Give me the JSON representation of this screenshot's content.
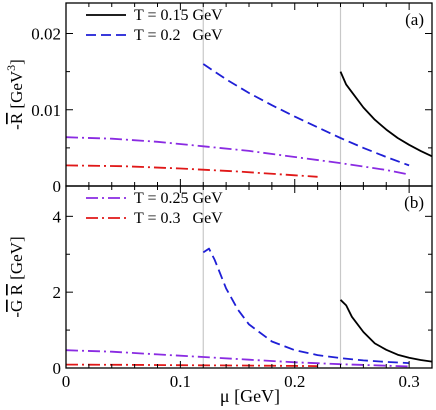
{
  "chart_data": [
    {
      "type": "line",
      "panel_label": "(a)",
      "ylabel_prefix": "-",
      "ylabel_bar": "R",
      "ylabel_unit": " [GeV",
      "ylabel_exp": "3",
      "ylabel_close": "]",
      "xlim": [
        0,
        0.32
      ],
      "ylim": [
        0,
        0.024
      ],
      "yticks": [
        0,
        0.01,
        0.02
      ],
      "ytick_labels": [
        "0",
        "0.01",
        "0.02"
      ],
      "legend": [
        {
          "label": "T = 0.15 GeV",
          "series": 0
        },
        {
          "label": "T = 0.2   GeV",
          "series": 1
        }
      ],
      "vlines": [
        0.12,
        0.24
      ],
      "series": [
        {
          "name": "T = 0.15 GeV",
          "color": "#000000",
          "dash": "solid",
          "x": [
            0.24,
            0.245,
            0.25,
            0.26,
            0.27,
            0.28,
            0.29,
            0.3,
            0.31,
            0.32
          ],
          "y": [
            0.015,
            0.0133,
            0.0123,
            0.0103,
            0.0087,
            0.0074,
            0.0063,
            0.0054,
            0.0046,
            0.0039
          ]
        },
        {
          "name": "T = 0.2   GeV",
          "color": "#1f1fd6",
          "dash": "dashed",
          "x": [
            0.12,
            0.14,
            0.16,
            0.18,
            0.2,
            0.22,
            0.24,
            0.26,
            0.28,
            0.3
          ],
          "y": [
            0.016,
            0.014,
            0.0122,
            0.0106,
            0.0091,
            0.0077,
            0.0063,
            0.005,
            0.0038,
            0.0027
          ]
        },
        {
          "name": "T = 0.25 GeV",
          "color": "#8a2be2",
          "dash": "dashdot",
          "x": [
            0,
            0.04,
            0.08,
            0.12,
            0.16,
            0.2,
            0.24,
            0.28,
            0.3
          ],
          "y": [
            0.0064,
            0.0062,
            0.0058,
            0.0052,
            0.0046,
            0.0038,
            0.003,
            0.0021,
            0.0015
          ]
        },
        {
          "name": "T = 0.3   GeV",
          "color": "#e01818",
          "dash": "dashdot",
          "x": [
            0,
            0.05,
            0.1,
            0.15,
            0.2,
            0.22
          ],
          "y": [
            0.0027,
            0.0026,
            0.0023,
            0.0019,
            0.0014,
            0.0012
          ]
        }
      ]
    },
    {
      "type": "line",
      "panel_label": "(b)",
      "ylabel_prefix": "-",
      "ylabel_bar": "G",
      "ylabel_bar2": "R",
      "ylabel_unit": " [GeV]",
      "xlabel": "μ [GeV]",
      "xlim": [
        0,
        0.32
      ],
      "ylim": [
        0,
        4.8
      ],
      "xticks": [
        0,
        0.1,
        0.2,
        0.3
      ],
      "xtick_labels": [
        "0",
        "0.1",
        "0.2",
        "0.3"
      ],
      "yticks": [
        0,
        2,
        4
      ],
      "ytick_labels": [
        "0",
        "2",
        "4"
      ],
      "legend": [
        {
          "label": "T = 0.25 GeV",
          "series": 2
        },
        {
          "label": "T = 0.3   GeV",
          "series": 3
        }
      ],
      "vlines": [
        0.12,
        0.24
      ],
      "series": [
        {
          "name": "T = 0.15 GeV",
          "color": "#000000",
          "dash": "solid",
          "x": [
            0.24,
            0.245,
            0.25,
            0.26,
            0.27,
            0.28,
            0.29,
            0.3,
            0.31,
            0.32
          ],
          "y": [
            1.8,
            1.65,
            1.35,
            0.95,
            0.65,
            0.48,
            0.35,
            0.27,
            0.21,
            0.17
          ]
        },
        {
          "name": "T = 0.2   GeV",
          "color": "#1f1fd6",
          "dash": "dashed",
          "x": [
            0.12,
            0.125,
            0.13,
            0.14,
            0.15,
            0.16,
            0.18,
            0.2,
            0.22,
            0.24,
            0.26,
            0.28,
            0.3
          ],
          "y": [
            3.05,
            3.15,
            2.85,
            2.1,
            1.55,
            1.15,
            0.7,
            0.47,
            0.34,
            0.26,
            0.2,
            0.16,
            0.13
          ]
        },
        {
          "name": "T = 0.25 GeV",
          "color": "#8a2be2",
          "dash": "dashdot",
          "x": [
            0,
            0.04,
            0.08,
            0.12,
            0.16,
            0.2,
            0.24,
            0.28,
            0.3
          ],
          "y": [
            0.47,
            0.43,
            0.36,
            0.29,
            0.22,
            0.15,
            0.1,
            0.06,
            0.04
          ]
        },
        {
          "name": "T = 0.3   GeV",
          "color": "#e01818",
          "dash": "dashdot",
          "x": [
            0,
            0.05,
            0.1,
            0.15,
            0.2,
            0.22
          ],
          "y": [
            0.09,
            0.085,
            0.075,
            0.065,
            0.055,
            0.05
          ]
        }
      ]
    }
  ]
}
